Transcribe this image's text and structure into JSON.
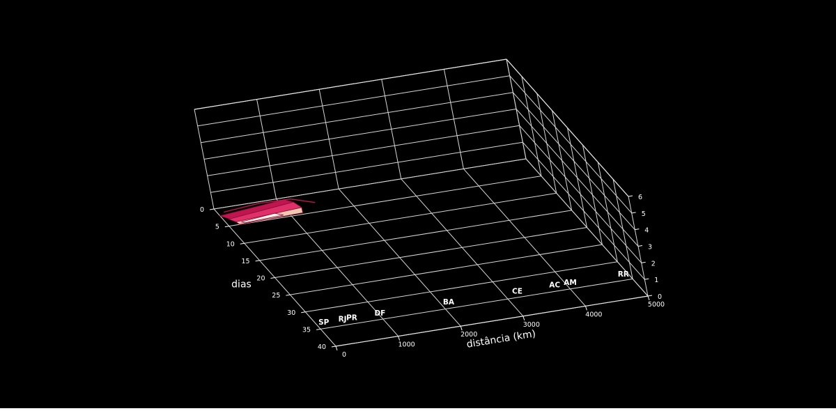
{
  "chart_data": {
    "type": "surface3d",
    "xlabel": "distância (km)",
    "ylabel": "dias",
    "zlabel": "",
    "xlim": [
      0,
      5000
    ],
    "ylim": [
      0,
      40
    ],
    "zlim": [
      0,
      6
    ],
    "x_ticks": [
      "0",
      "1000",
      "2000",
      "3000",
      "4000",
      "5000"
    ],
    "y_ticks": [
      "0",
      "5",
      "10",
      "15",
      "20",
      "25",
      "30",
      "35",
      "40"
    ],
    "z_ticks": [
      "0",
      "1",
      "2",
      "3",
      "4",
      "5",
      "6"
    ],
    "state_labels": [
      {
        "label": "SP",
        "x": 100
      },
      {
        "label": "RJ",
        "x": 400
      },
      {
        "label": "PR",
        "x": 550
      },
      {
        "label": "DF",
        "x": 1000
      },
      {
        "label": "BA",
        "x": 2100
      },
      {
        "label": "CE",
        "x": 3200
      },
      {
        "label": "AC",
        "x": 3800
      },
      {
        "label": "AM",
        "x": 4050
      },
      {
        "label": "RR",
        "x": 4900
      }
    ],
    "surface_colors": [
      "#8b0a3a",
      "#c0164f",
      "#e0306a",
      "#f2c7b0",
      "#fff3e6"
    ],
    "grid": true,
    "background": "#000000"
  }
}
